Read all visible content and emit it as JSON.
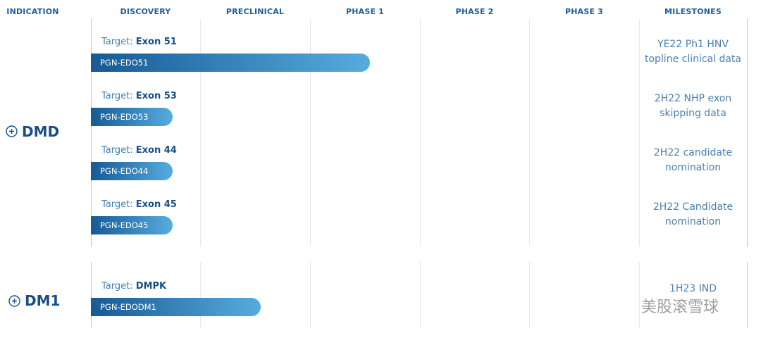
{
  "header": [
    "INDICATION",
    "DISCOVERY",
    "PRECLINICAL",
    "PHASE 1",
    "PHASE 2",
    "PHASE 3",
    "MILESTONES"
  ],
  "groups": [
    {
      "indication": "DMD",
      "programs": [
        {
          "target_label": "Target:",
          "target": "Exon 51",
          "name": "PGN-EDO51",
          "milestone": [
            "YE22 Ph1 HNV",
            "topline clinical data"
          ]
        },
        {
          "target_label": "Target:",
          "target": "Exon 53",
          "name": "PGN-EDO53",
          "milestone": [
            "2H22 NHP exon",
            "skipping data"
          ]
        },
        {
          "target_label": "Target:",
          "target": "Exon 44",
          "name": "PGN-EDO44",
          "milestone": [
            "2H22 candidate",
            "nomination"
          ]
        },
        {
          "target_label": "Target:",
          "target": "Exon 45",
          "name": "PGN-EDO45",
          "milestone": [
            "2H22 Candidate",
            "nomination"
          ]
        }
      ]
    },
    {
      "indication": "DM1",
      "programs": [
        {
          "target_label": "Target:",
          "target": "DMPK",
          "name": "PGN-EDODM1",
          "milestone": [
            "1H23 IND"
          ]
        }
      ]
    }
  ],
  "watermark": "美股滚雪球"
}
